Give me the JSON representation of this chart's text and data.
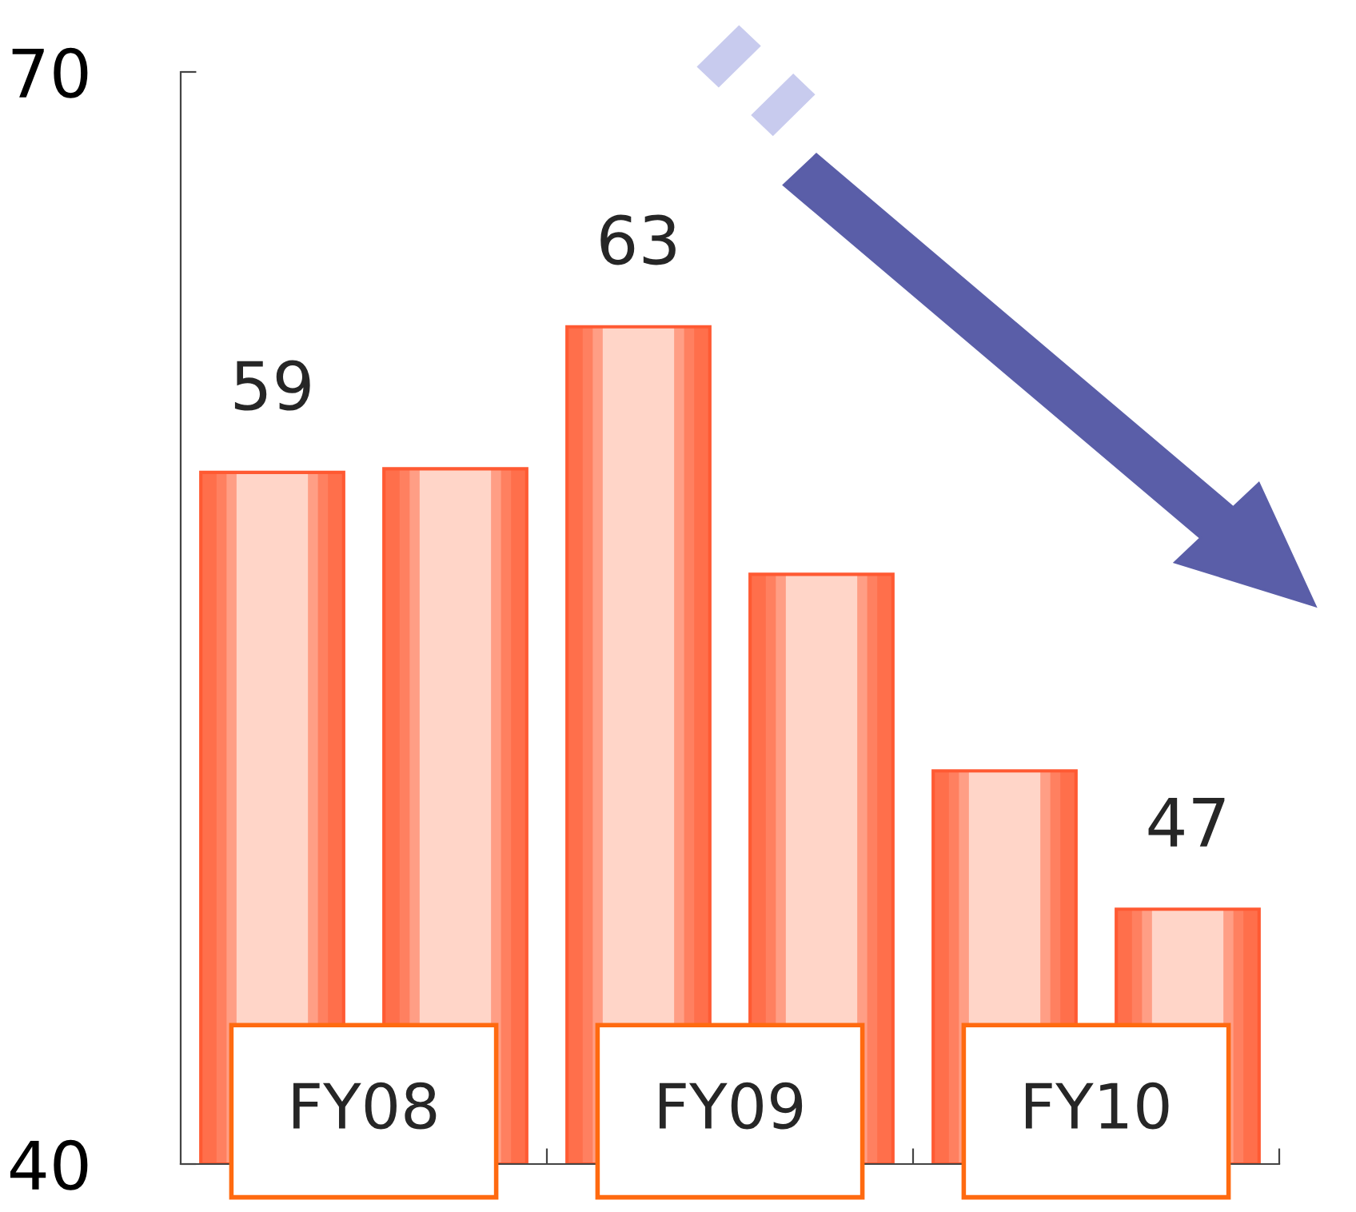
{
  "chart_data": {
    "type": "bar",
    "categories": [
      null,
      null,
      null,
      null,
      null,
      null
    ],
    "values": [
      59,
      59.1,
      63,
      56.2,
      50.8,
      47
    ],
    "value_labels": [
      "59",
      null,
      "63",
      null,
      null,
      "47"
    ],
    "color": "#ff5a33",
    "ylim": [
      40,
      70
    ],
    "yticks": [
      40,
      70
    ],
    "annotations": [
      "FY08",
      "FY09",
      "FY10"
    ],
    "grid": false
  }
}
